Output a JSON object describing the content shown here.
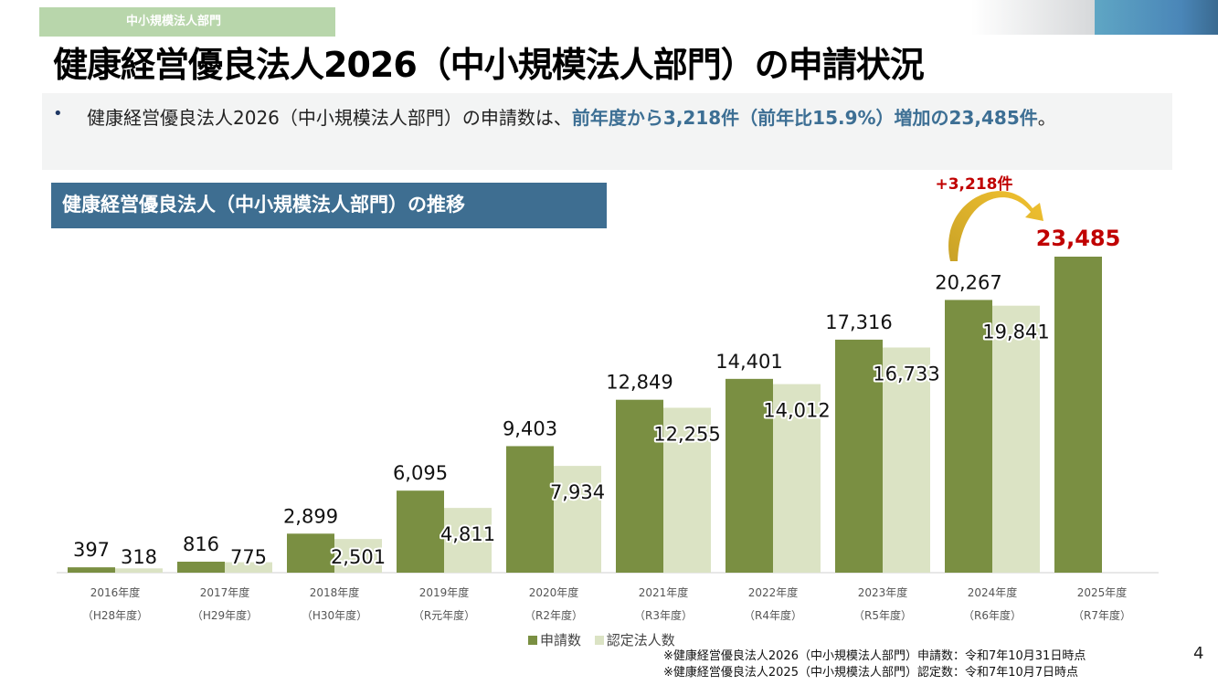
{
  "header": {
    "tag": "中小規模法人部門",
    "title": "健康経営優良法人2026（中小規模法人部門）の申請状況"
  },
  "summary": {
    "bullet": "•",
    "text_plain": "健康経営優良法人2026（中小規模法人部門）の申請数は、",
    "text_highlight": "前年度から3,218件（前年比15.9%）増加の23,485件",
    "text_end": "。"
  },
  "chart_data": {
    "type": "bar",
    "title": "健康経営優良法人（中小規模法人部門）の推移",
    "categories": [
      "2016年度",
      "2017年度",
      "2018年度",
      "2019年度",
      "2020年度",
      "2021年度",
      "2022年度",
      "2023年度",
      "2024年度",
      "2025年度"
    ],
    "subcategories": [
      "（H28年度）",
      "（H29年度）",
      "（H30年度）",
      "（R元年度）",
      "（R2年度）",
      "（R3年度）",
      "（R4年度）",
      "（R5年度）",
      "（R6年度）",
      "（R7年度）"
    ],
    "series": [
      {
        "name": "申請数",
        "color": "#7a8f42",
        "values": [
          397,
          816,
          2899,
          6095,
          9403,
          12849,
          14401,
          17316,
          20267,
          23485
        ],
        "labels": [
          "397",
          "816",
          "2,899",
          "6,095",
          "9,403",
          "12,849",
          "14,401",
          "17,316",
          "20,267",
          "23,485"
        ]
      },
      {
        "name": "認定法人数",
        "color": "#dbe3c4",
        "values": [
          318,
          775,
          2501,
          4811,
          7934,
          12255,
          14012,
          16733,
          19841,
          null
        ],
        "labels": [
          "318",
          "775",
          "2,501",
          "4,811",
          "7,934",
          "12,255",
          "14,012",
          "16,733",
          "19,841",
          ""
        ]
      }
    ],
    "annotation": "+3,218件",
    "highlight_color": "#c00000",
    "ylim": [
      0,
      23485
    ],
    "legend": "bottom-center"
  },
  "notes": [
    "※健康経営優良法人2026（中小規模法人部門）申請数：令和7年10月31日時点",
    "※健康経営優良法人2025（中小規模法人部門）認定数：令和7年10月7日時点"
  ],
  "page_number": "4"
}
